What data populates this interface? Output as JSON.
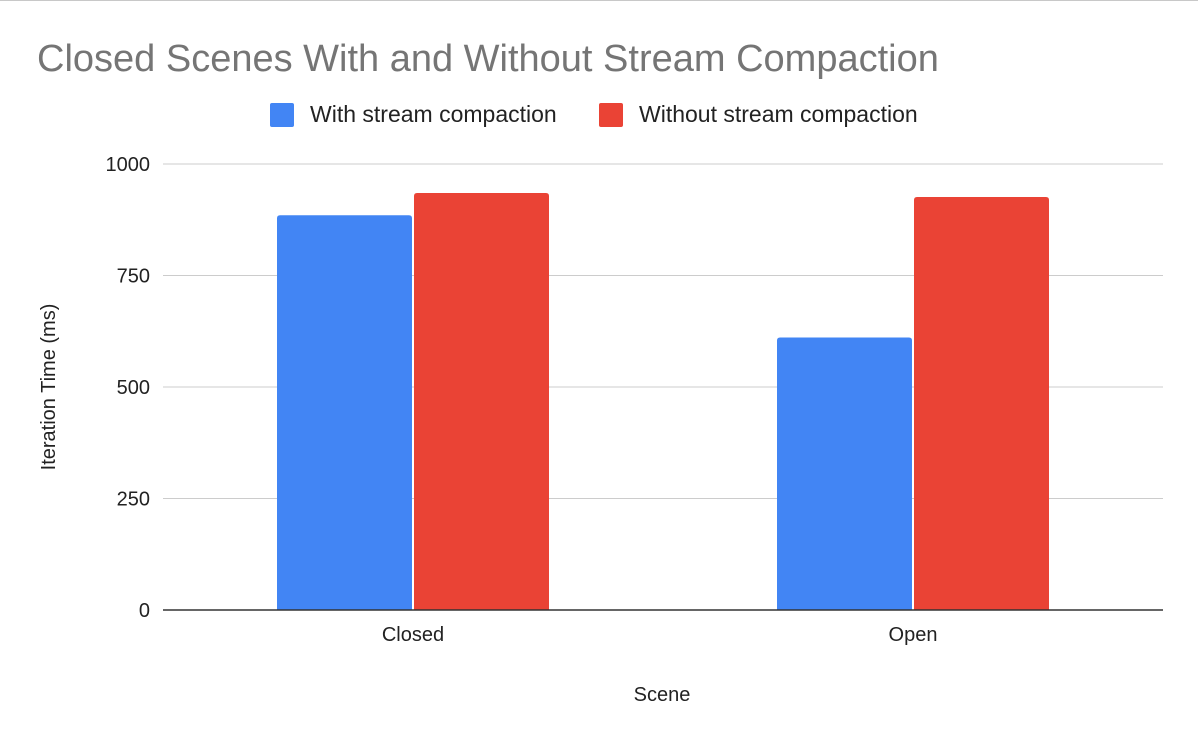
{
  "chart_data": {
    "type": "bar",
    "title": "Closed Scenes With and Without Stream Compaction",
    "xlabel": "Scene",
    "ylabel": "Iteration Time (ms)",
    "categories": [
      "Closed",
      "Open"
    ],
    "series": [
      {
        "name": "With stream compaction",
        "color": "#4285f4",
        "values": [
          885,
          611
        ]
      },
      {
        "name": "Without stream compaction",
        "color": "#ea4335",
        "values": [
          935,
          926
        ]
      }
    ],
    "ylim": [
      0,
      1000
    ],
    "yticks": [
      "0",
      "250",
      "500",
      "750",
      "1000"
    ],
    "grid": true,
    "legend_position": "top"
  }
}
